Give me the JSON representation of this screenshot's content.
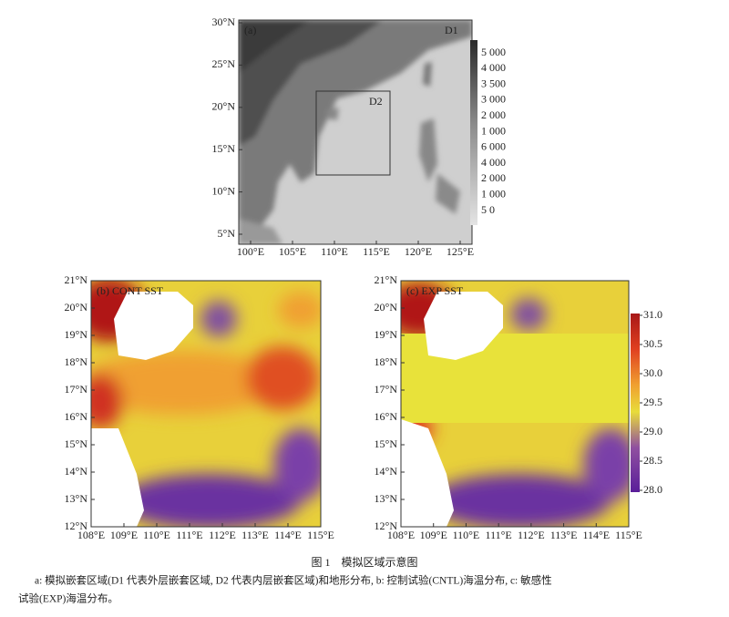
{
  "panel_a": {
    "label": "(a)",
    "outer_domain": "D1",
    "inner_domain": "D2",
    "yticks": [
      "30°N",
      "25°N",
      "20°N",
      "15°N",
      "10°N",
      "5°N"
    ],
    "xticks": [
      "100°E",
      "105°E",
      "110°E",
      "115°E",
      "120°E",
      "125°E"
    ],
    "colorbar": [
      "5 000",
      "4 000",
      "3 500",
      "3 000",
      "2 000",
      "1 000",
      "6 000",
      "4 000",
      "2 000",
      "1 000",
      "5 0"
    ]
  },
  "sst_axes": {
    "yticks": [
      "21°N",
      "20°N",
      "19°N",
      "18°N",
      "17°N",
      "16°N",
      "15°N",
      "14°N",
      "13°N",
      "12°N"
    ],
    "xticks": [
      "108°E",
      "109°E",
      "110°E",
      "111°E",
      "112°E",
      "113°E",
      "114°E",
      "115°E"
    ]
  },
  "panel_b": {
    "label": "(b) CONT SST"
  },
  "panel_c": {
    "label": "(c) EXP SST",
    "colorbar": [
      "31.0",
      "30.5",
      "30.0",
      "29.5",
      "29.0",
      "28.5",
      "28.0"
    ]
  },
  "caption": {
    "title": "图 1　模拟区域示意图",
    "notes": [
      "a: 模拟嵌套区域(D1 代表外层嵌套区域, D2 代表内层嵌套区域)和地形分布, b: 控制试验(CNTL)海温分布, c: 敏感性",
      "试验(EXP)海温分布。"
    ]
  }
}
